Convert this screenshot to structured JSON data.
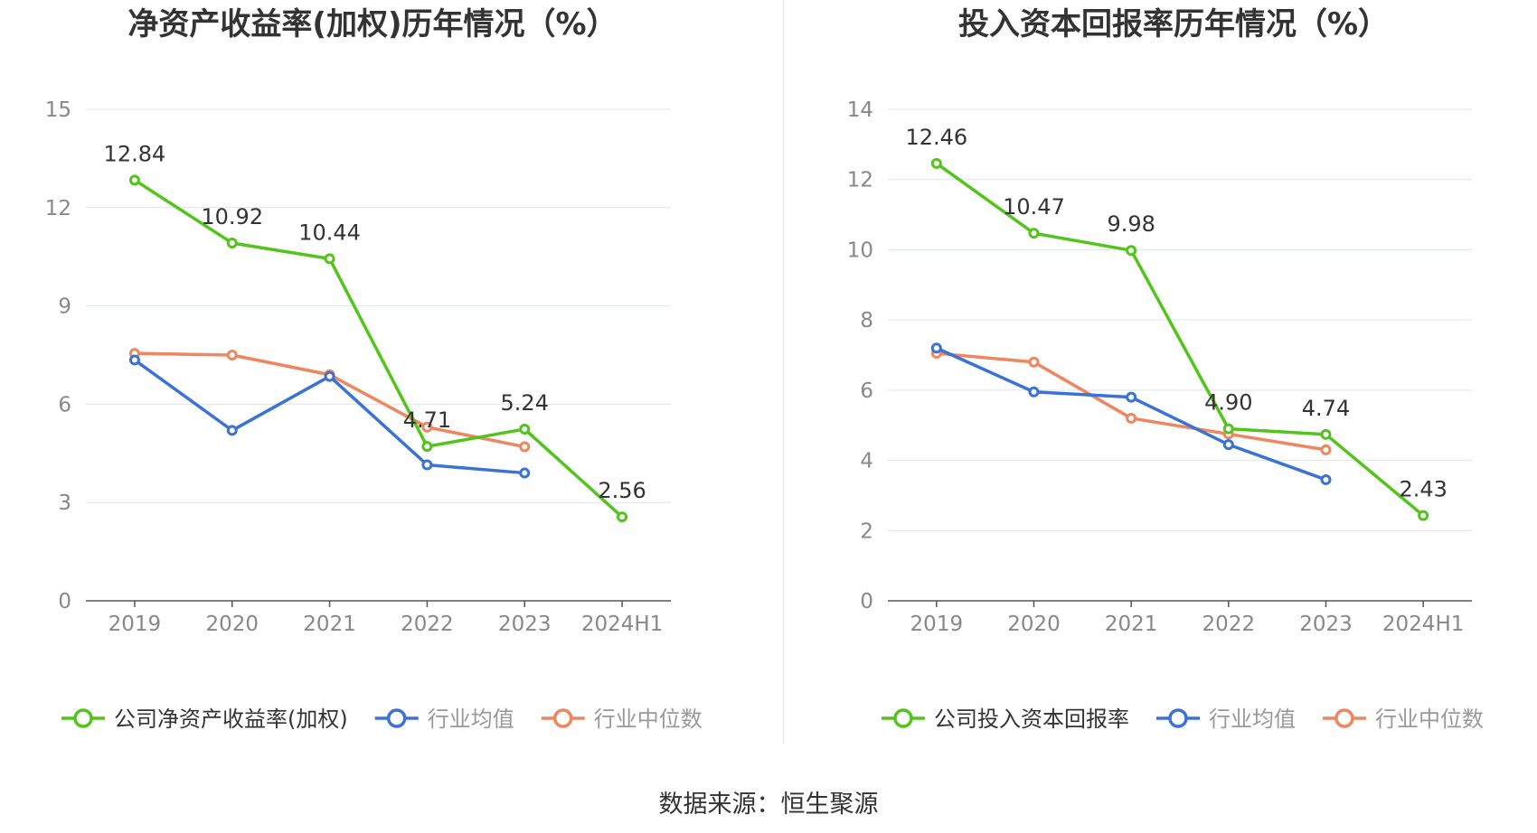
{
  "colors": {
    "company": "#52c41a",
    "average": "#3a72d8",
    "median": "#f0865f",
    "grid": "#dde4ef",
    "axis_text": "#888888",
    "title": "#333333"
  },
  "footer": {
    "source": "数据来源：恒生聚源"
  },
  "chart_data": [
    {
      "type": "line",
      "title": "净资产收益率(加权)历年情况（%）",
      "categories": [
        "2019",
        "2020",
        "2021",
        "2022",
        "2023",
        "2024H1"
      ],
      "ylim": [
        0,
        15
      ],
      "yticks": [
        "0",
        "3",
        "6",
        "9",
        "12",
        "15"
      ],
      "grid": true,
      "legend_position": "bottom",
      "series": [
        {
          "name": "公司净资产收益率(加权)",
          "color": "#52c41a",
          "values": [
            12.84,
            10.92,
            10.44,
            4.71,
            5.24,
            2.56
          ],
          "labels": [
            "12.84",
            "10.92",
            "10.44",
            "4.71",
            "5.24",
            "2.56"
          ]
        },
        {
          "name": "行业均值",
          "color": "#3a72d8",
          "values": [
            7.35,
            5.2,
            6.85,
            4.15,
            3.9,
            null
          ]
        },
        {
          "name": "行业中位数",
          "color": "#f0865f",
          "values": [
            7.55,
            7.5,
            6.9,
            5.3,
            4.7,
            null
          ]
        }
      ]
    },
    {
      "type": "line",
      "title": "投入资本回报率历年情况（%）",
      "categories": [
        "2019",
        "2020",
        "2021",
        "2022",
        "2023",
        "2024H1"
      ],
      "ylim": [
        0,
        14
      ],
      "yticks": [
        "0",
        "2",
        "4",
        "6",
        "8",
        "10",
        "12",
        "14"
      ],
      "grid": true,
      "legend_position": "bottom",
      "series": [
        {
          "name": "公司投入资本回报率",
          "color": "#52c41a",
          "values": [
            12.46,
            10.47,
            9.98,
            4.9,
            4.74,
            2.43
          ],
          "labels": [
            "12.46",
            "10.47",
            "9.98",
            "4.90",
            "4.74",
            "2.43"
          ]
        },
        {
          "name": "行业均值",
          "color": "#3a72d8",
          "values": [
            7.2,
            5.95,
            5.8,
            4.45,
            3.45,
            null
          ]
        },
        {
          "name": "行业中位数",
          "color": "#f0865f",
          "values": [
            7.05,
            6.8,
            5.2,
            4.75,
            4.3,
            null
          ]
        }
      ]
    }
  ]
}
